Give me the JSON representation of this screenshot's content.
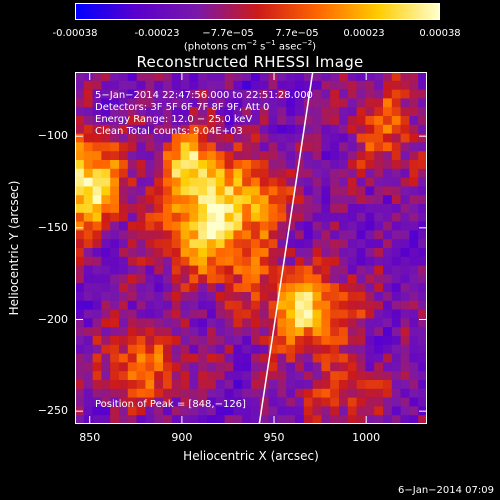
{
  "colorbar": {
    "ticks": [
      "-0.00038",
      "-0.00023",
      "−7.7e−05",
      "7.7e−05",
      "0.00023",
      "0.00038"
    ],
    "unit_prefix": "(photons cm",
    "unit_exp1": "−2",
    "unit_mid": " s",
    "unit_exp2": "−1",
    "unit_mid2": " asec",
    "unit_exp3": "−2",
    "unit_suffix": ")",
    "colors": [
      "#0000ff",
      "#5a00cc",
      "#7a18aa",
      "#cc1a1a",
      "#ff6600",
      "#ffcc00",
      "#ffffcc"
    ]
  },
  "info": {
    "line1": "5−Jan−2014 22:47:56.000 to 22:51:28.000",
    "line2": "Detectors: 3F 5F 6F 7F 8F 9F, Att 0",
    "line3": "Energy Range: 12.0 − 25.0 keV",
    "line4": "Clean    Total counts: 9.04E+03",
    "peak": "Position of Peak = [848,−126]"
  },
  "footer": {
    "timestamp": "6−Jan−2014 07:09"
  },
  "chart_data": {
    "type": "heatmap",
    "title": "Reconstructed RHESSI Image",
    "xlabel": "Heliocentric X (arcsec)",
    "ylabel": "Heliocentric Y (arcsec)",
    "xlim": [
      842,
      1033
    ],
    "ylim": [
      -257,
      -65
    ],
    "xticks": [
      850,
      900,
      950,
      1000
    ],
    "yticks": [
      -100,
      -150,
      -200,
      -250
    ],
    "value_range": [
      -0.00038,
      0.00038
    ],
    "limb_line": [
      [
        942,
        -257
      ],
      [
        971,
        -65
      ]
    ],
    "peak_position": [
      848,
      -126
    ],
    "sources": [
      {
        "x": 848,
        "y": -126,
        "amp": 1.0,
        "sx": 14,
        "sy": 18
      },
      {
        "x": 918,
        "y": -148,
        "amp": 0.95,
        "sx": 20,
        "sy": 22
      },
      {
        "x": 905,
        "y": -115,
        "amp": 0.7,
        "sx": 12,
        "sy": 12
      },
      {
        "x": 968,
        "y": -195,
        "amp": 0.85,
        "sx": 18,
        "sy": 16
      },
      {
        "x": 880,
        "y": -225,
        "amp": 0.55,
        "sx": 18,
        "sy": 14
      },
      {
        "x": 1010,
        "y": -95,
        "amp": 0.5,
        "sx": 14,
        "sy": 18
      },
      {
        "x": 990,
        "y": -240,
        "amp": 0.45,
        "sx": 16,
        "sy": 10
      },
      {
        "x": 945,
        "y": -130,
        "amp": 0.4,
        "sx": 10,
        "sy": 12
      }
    ]
  }
}
